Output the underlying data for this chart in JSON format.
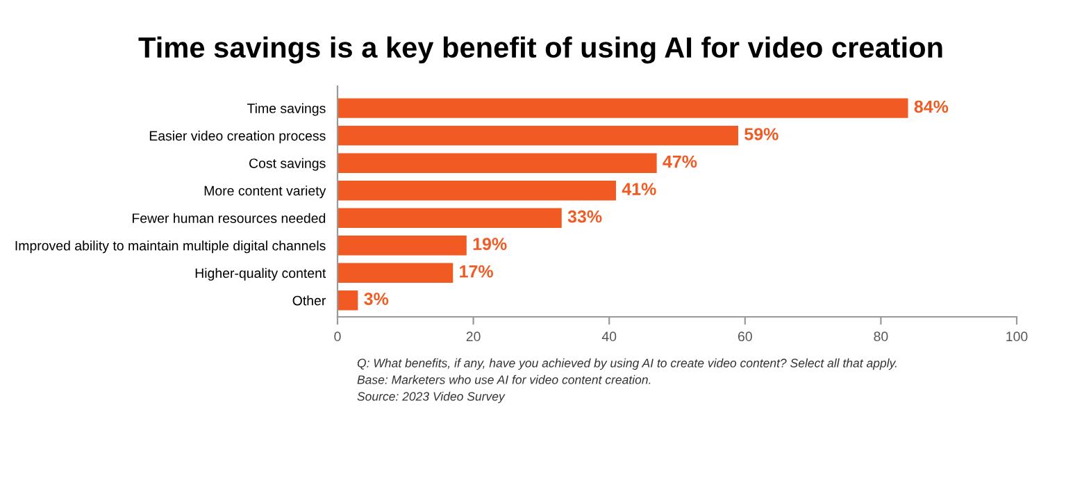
{
  "chart_data": {
    "type": "bar",
    "orientation": "horizontal",
    "title": "Time savings is a key benefit of using AI for video creation",
    "categories": [
      "Time savings",
      "Easier video creation process",
      "Cost savings",
      "More content variety",
      "Fewer human resources needed",
      "Improved ability to maintain multiple digital channels",
      "Higher-quality content",
      "Other"
    ],
    "values": [
      84,
      59,
      47,
      41,
      33,
      19,
      17,
      3
    ],
    "value_labels": [
      "84%",
      "59%",
      "47%",
      "41%",
      "33%",
      "19%",
      "17%",
      "3%"
    ],
    "color": "#f15a22",
    "xlim": [
      0,
      100
    ],
    "xticks": [
      0,
      20,
      40,
      60,
      80,
      100
    ],
    "grid": false,
    "annotations": [
      "Q: What benefits, if any, have you achieved by using AI to create video content? Select all that apply.",
      "Base: Marketers who use AI for video content creation.",
      "Source: 2023 Video Survey"
    ]
  }
}
